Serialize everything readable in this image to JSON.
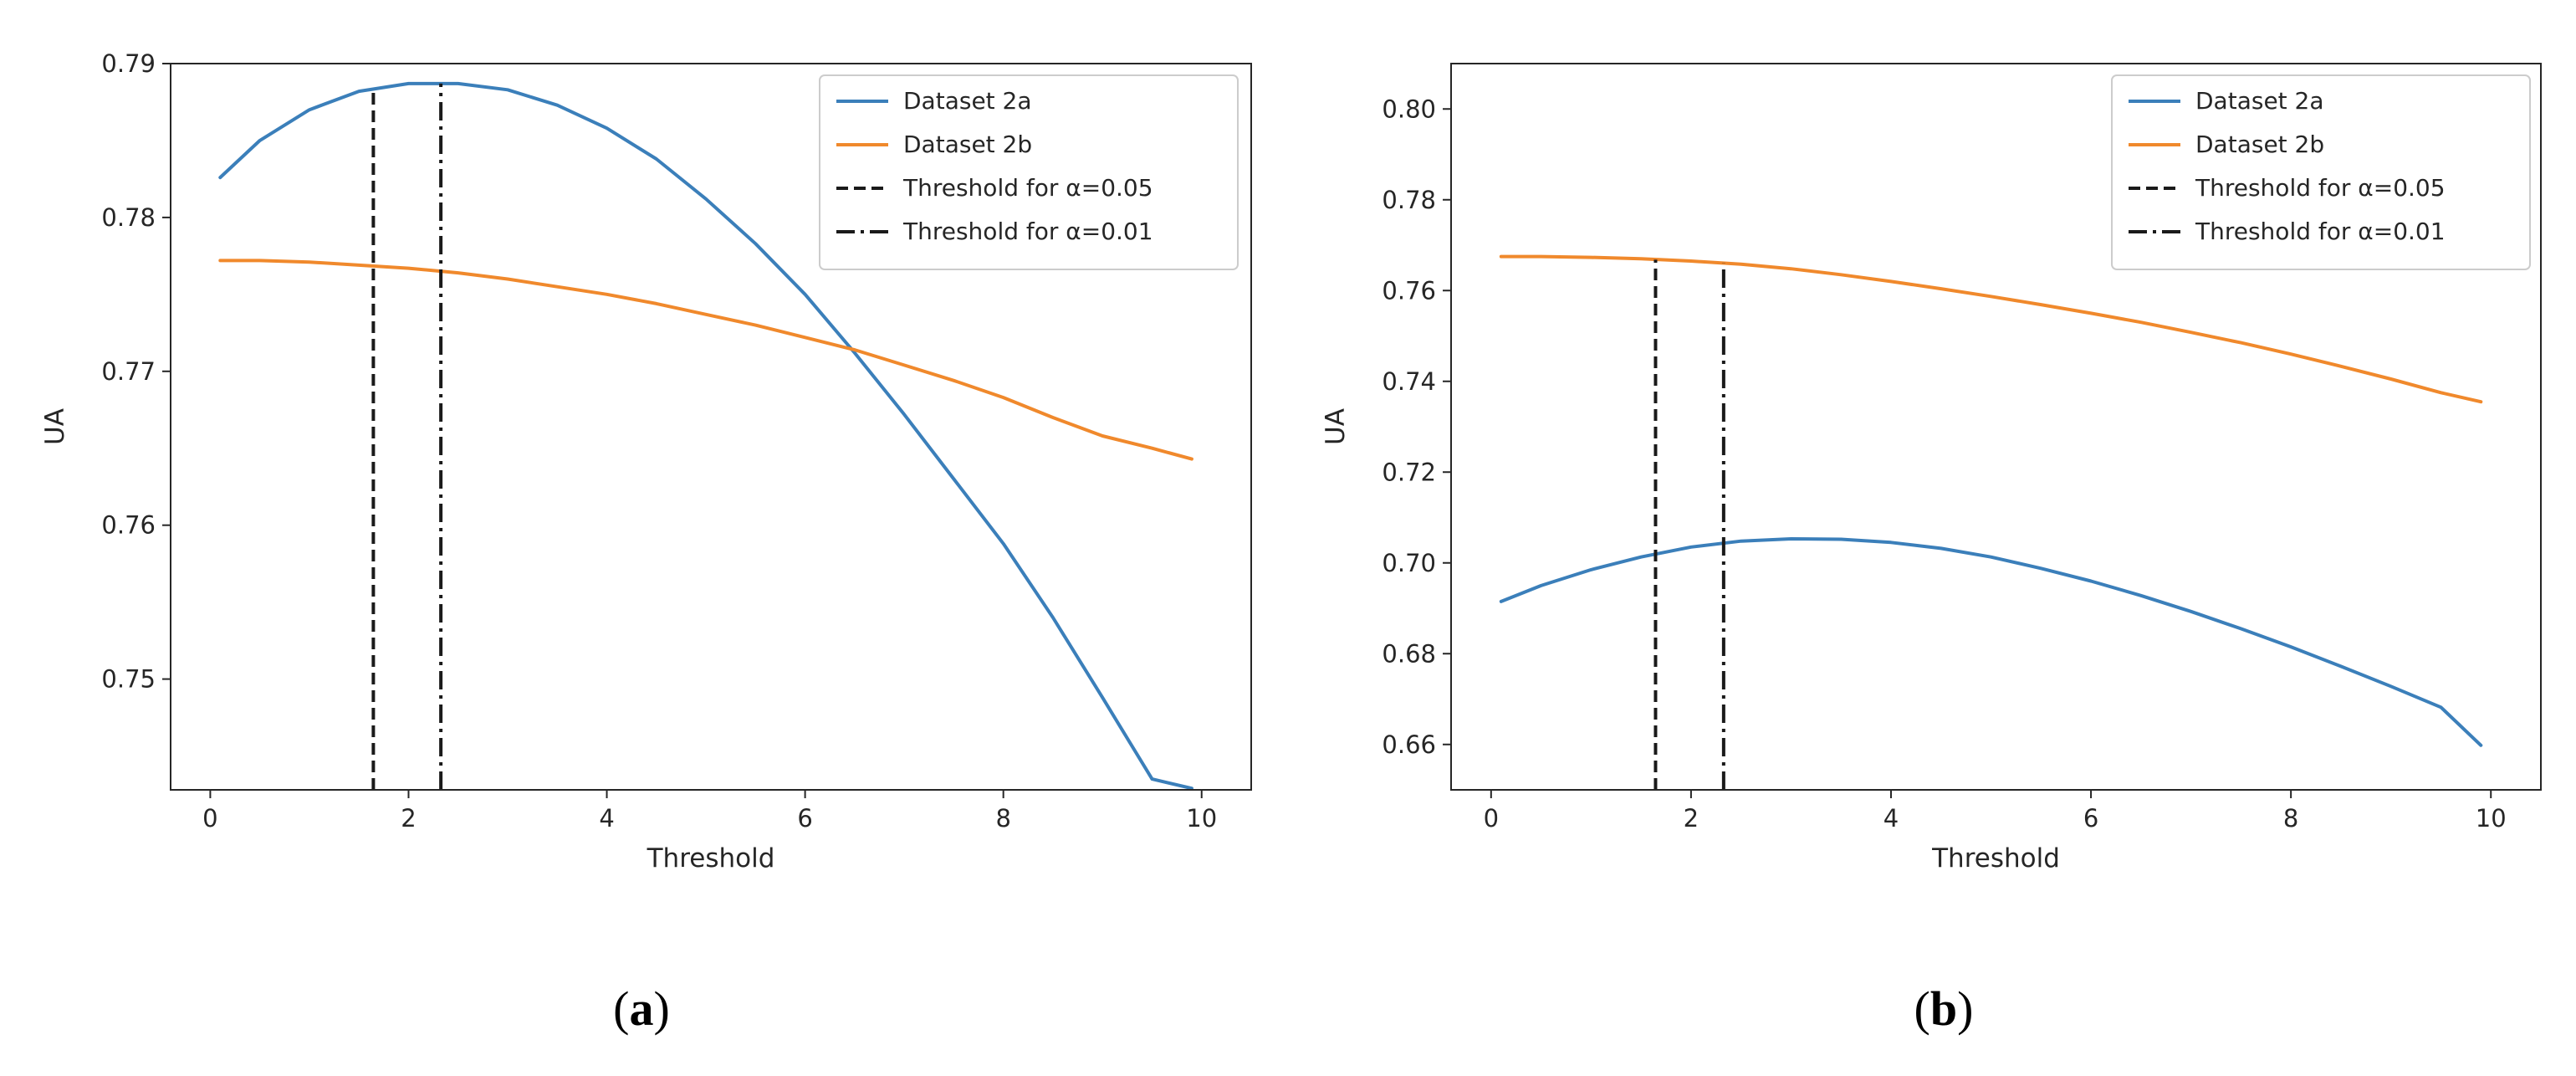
{
  "colors": {
    "series_2a": "#3b7fba",
    "series_2b": "#f0892c",
    "threshold": "#1a1a1a",
    "axis": "#262626"
  },
  "chart_data": [
    {
      "id": "a",
      "type": "line",
      "caption": "(a)",
      "caption_letter": "a",
      "xlabel": "Threshold",
      "ylabel": "UA",
      "xlim": [
        -0.4,
        10.5
      ],
      "ylim": [
        0.7428,
        0.79
      ],
      "xticks": [
        0,
        2,
        4,
        6,
        8,
        10
      ],
      "xtick_labels": [
        "0",
        "2",
        "4",
        "6",
        "8",
        "10"
      ],
      "yticks": [
        0.75,
        0.76,
        0.77,
        0.78,
        0.79
      ],
      "ytick_labels": [
        "0.75",
        "0.76",
        "0.77",
        "0.78",
        "0.79"
      ],
      "legend_position": "top-right",
      "series": [
        {
          "name": "Dataset 2a",
          "color_key": "series_2a",
          "x": [
            0.1,
            0.5,
            1.0,
            1.5,
            2.0,
            2.5,
            3.0,
            3.5,
            4.0,
            4.5,
            5.0,
            5.5,
            6.0,
            6.5,
            7.0,
            7.5,
            8.0,
            8.5,
            9.0,
            9.5,
            9.9
          ],
          "y": [
            0.7826,
            0.785,
            0.787,
            0.7882,
            0.7887,
            0.7887,
            0.7883,
            0.7873,
            0.7858,
            0.7838,
            0.7812,
            0.7783,
            0.775,
            0.7712,
            0.7672,
            0.763,
            0.7588,
            0.754,
            0.7488,
            0.7435,
            0.7429
          ]
        },
        {
          "name": "Dataset 2b",
          "color_key": "series_2b",
          "x": [
            0.1,
            0.5,
            1.0,
            1.5,
            2.0,
            2.5,
            3.0,
            3.5,
            4.0,
            4.5,
            5.0,
            5.5,
            6.0,
            6.5,
            7.0,
            7.5,
            8.0,
            8.5,
            9.0,
            9.5,
            9.9
          ],
          "y": [
            0.7772,
            0.7772,
            0.7771,
            0.7769,
            0.7767,
            0.7764,
            0.776,
            0.7755,
            0.775,
            0.7744,
            0.7737,
            0.773,
            0.7722,
            0.7714,
            0.7704,
            0.7694,
            0.7683,
            0.767,
            0.7658,
            0.765,
            0.7643
          ]
        }
      ],
      "vlines": [
        {
          "name": "Threshold for α=0.05",
          "x": 1.645,
          "style": "dashed",
          "y_top": 0.7882
        },
        {
          "name": "Threshold for α=0.01",
          "x": 2.326,
          "style": "dashdot",
          "y_top": 0.7887
        }
      ],
      "legend": [
        "Dataset 2a",
        "Dataset 2b",
        "Threshold for α=0.05",
        "Threshold for α=0.01"
      ]
    },
    {
      "id": "b",
      "type": "line",
      "caption": "(b)",
      "caption_letter": "b",
      "xlabel": "Threshold",
      "ylabel": "UA",
      "xlim": [
        -0.4,
        10.5
      ],
      "ylim": [
        0.65,
        0.81
      ],
      "xticks": [
        0,
        2,
        4,
        6,
        8,
        10
      ],
      "xtick_labels": [
        "0",
        "2",
        "4",
        "6",
        "8",
        "10"
      ],
      "yticks": [
        0.66,
        0.68,
        0.7,
        0.72,
        0.74,
        0.76,
        0.78,
        0.8
      ],
      "ytick_labels": [
        "0.66",
        "0.68",
        "0.70",
        "0.72",
        "0.74",
        "0.76",
        "0.78",
        "0.80"
      ],
      "legend_position": "top-right",
      "series": [
        {
          "name": "Dataset 2a",
          "color_key": "series_2a",
          "x": [
            0.1,
            0.5,
            1.0,
            1.5,
            2.0,
            2.5,
            3.0,
            3.5,
            4.0,
            4.5,
            5.0,
            5.5,
            6.0,
            6.5,
            7.0,
            7.5,
            8.0,
            8.5,
            9.0,
            9.5,
            9.9
          ],
          "y": [
            0.6915,
            0.695,
            0.6985,
            0.7013,
            0.7035,
            0.7048,
            0.7053,
            0.7052,
            0.7045,
            0.7032,
            0.7013,
            0.6988,
            0.696,
            0.6928,
            0.6893,
            0.6855,
            0.6815,
            0.6772,
            0.6728,
            0.6682,
            0.6598
          ]
        },
        {
          "name": "Dataset 2b",
          "color_key": "series_2b",
          "x": [
            0.1,
            0.5,
            1.0,
            1.5,
            2.0,
            2.5,
            3.0,
            3.5,
            4.0,
            4.5,
            5.0,
            5.5,
            6.0,
            6.5,
            7.0,
            7.5,
            8.0,
            8.5,
            9.0,
            9.5,
            9.9
          ],
          "y": [
            0.7675,
            0.7675,
            0.7673,
            0.767,
            0.7665,
            0.7658,
            0.7648,
            0.7635,
            0.762,
            0.7604,
            0.7587,
            0.7569,
            0.755,
            0.753,
            0.7508,
            0.7485,
            0.746,
            0.7433,
            0.7405,
            0.7375,
            0.7355
          ]
        }
      ],
      "vlines": [
        {
          "name": "Threshold for α=0.05",
          "x": 1.645,
          "style": "dashed",
          "y_top": 0.7668
        },
        {
          "name": "Threshold for α=0.01",
          "x": 2.326,
          "style": "dashdot",
          "y_top": 0.766
        }
      ],
      "legend": [
        "Dataset 2a",
        "Dataset 2b",
        "Threshold for α=0.05",
        "Threshold for α=0.01"
      ]
    }
  ]
}
